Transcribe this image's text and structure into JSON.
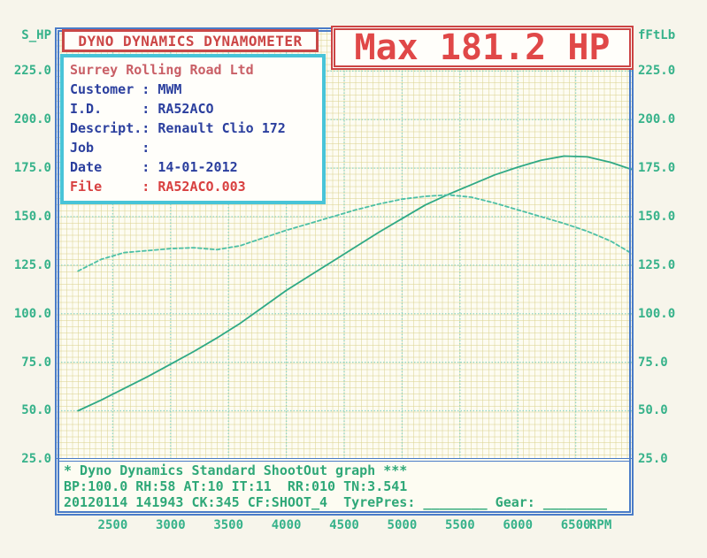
{
  "header": {
    "title": "DYNO DYNAMICS DYNAMOMETER",
    "max_label": "Max 181.2 HP"
  },
  "info_box": {
    "lines": [
      {
        "text": "Surrey Rolling Road Ltd",
        "color": "#c95f66"
      },
      {
        "text": "Customer : MWM",
        "color": "#2b3f9e"
      },
      {
        "text": "I.D.     : RA52ACO",
        "color": "#2b3f9e"
      },
      {
        "text": "Descript.: Renault Clio 172",
        "color": "#2b3f9e"
      },
      {
        "text": "Job      :",
        "color": "#2b3f9e"
      },
      {
        "text": "Date     : 14-01-2012",
        "color": "#2b3f9e"
      },
      {
        "text": "File     : RA52ACO.003",
        "color": "#d84040"
      }
    ]
  },
  "footer": {
    "lines": [
      "* Dyno Dynamics Standard ShootOut graph ***",
      "BP:100.0 RH:58 AT:10 IT:11  RR:010 TN:3.541",
      "20120114 141943 CK:345 CF:SHOOT_4  TyrePres: ________ Gear: ________"
    ]
  },
  "axes": {
    "left_title": "S_HP",
    "right_title": "fFtLb",
    "y_tick_labels": [
      "225.0",
      "200.0",
      "175.0",
      "150.0",
      "125.0",
      "100.0",
      "75.0",
      "50.0",
      "25.0"
    ],
    "x_tick_labels": [
      "2500",
      "3000",
      "3500",
      "4000",
      "4500",
      "5000",
      "5500",
      "6000",
      "6500"
    ],
    "x_unit": "RPM"
  },
  "colors": {
    "accent_red": "#cc4646",
    "navy": "#2b3f9e",
    "green_text": "#36b28a",
    "grid_major": "#7fd2c4",
    "frame_blue": "#4a7cc8",
    "power_curve": "#2fa985",
    "torque_curve": "#4cc0a6"
  },
  "chart_data": {
    "type": "line",
    "title": "Max 181.2 HP",
    "xlabel": "RPM",
    "ylabel_left": "S_HP",
    "ylabel_right": "fFtLb",
    "xlim": [
      2000,
      7000
    ],
    "ylim": [
      -4.0,
      247.5
    ],
    "grid": {
      "x_values": [
        2500,
        3000,
        3500,
        4000,
        4500,
        5000,
        5500,
        6000,
        6500
      ],
      "y_values": [
        50,
        75,
        100,
        125,
        150,
        175,
        200,
        225
      ]
    },
    "max_power_hp": 181.2,
    "series": [
      {
        "name": "Power (S_HP)",
        "style": "solid",
        "color": "#2fa985",
        "points": [
          [
            2200,
            50
          ],
          [
            2400,
            55.5
          ],
          [
            2600,
            61.5
          ],
          [
            2800,
            67.5
          ],
          [
            3000,
            74
          ],
          [
            3200,
            80.5
          ],
          [
            3400,
            87.5
          ],
          [
            3600,
            95
          ],
          [
            3800,
            103.5
          ],
          [
            4000,
            112
          ],
          [
            4200,
            119.5
          ],
          [
            4400,
            127
          ],
          [
            4600,
            134.5
          ],
          [
            4800,
            142
          ],
          [
            5000,
            149
          ],
          [
            5200,
            156
          ],
          [
            5400,
            161.5
          ],
          [
            5600,
            166.5
          ],
          [
            5800,
            171.5
          ],
          [
            6000,
            175.5
          ],
          [
            6200,
            179
          ],
          [
            6400,
            181.2
          ],
          [
            6600,
            180.8
          ],
          [
            6800,
            178
          ],
          [
            7000,
            174
          ]
        ]
      },
      {
        "name": "Torque (fFtLb)",
        "style": "dashed",
        "color": "#4cc0a6",
        "points": [
          [
            2200,
            122
          ],
          [
            2400,
            128
          ],
          [
            2600,
            131.5
          ],
          [
            2800,
            132.5
          ],
          [
            3000,
            133.5
          ],
          [
            3200,
            134
          ],
          [
            3400,
            133
          ],
          [
            3600,
            135
          ],
          [
            3800,
            139
          ],
          [
            4000,
            143
          ],
          [
            4200,
            146.5
          ],
          [
            4400,
            150
          ],
          [
            4600,
            153.5
          ],
          [
            4800,
            156.5
          ],
          [
            5000,
            159
          ],
          [
            5200,
            160.5
          ],
          [
            5400,
            161.2
          ],
          [
            5600,
            160
          ],
          [
            5800,
            157
          ],
          [
            6000,
            153.5
          ],
          [
            6200,
            150
          ],
          [
            6400,
            146.5
          ],
          [
            6600,
            142.5
          ],
          [
            6800,
            137.5
          ],
          [
            7000,
            130.5
          ]
        ]
      }
    ]
  }
}
